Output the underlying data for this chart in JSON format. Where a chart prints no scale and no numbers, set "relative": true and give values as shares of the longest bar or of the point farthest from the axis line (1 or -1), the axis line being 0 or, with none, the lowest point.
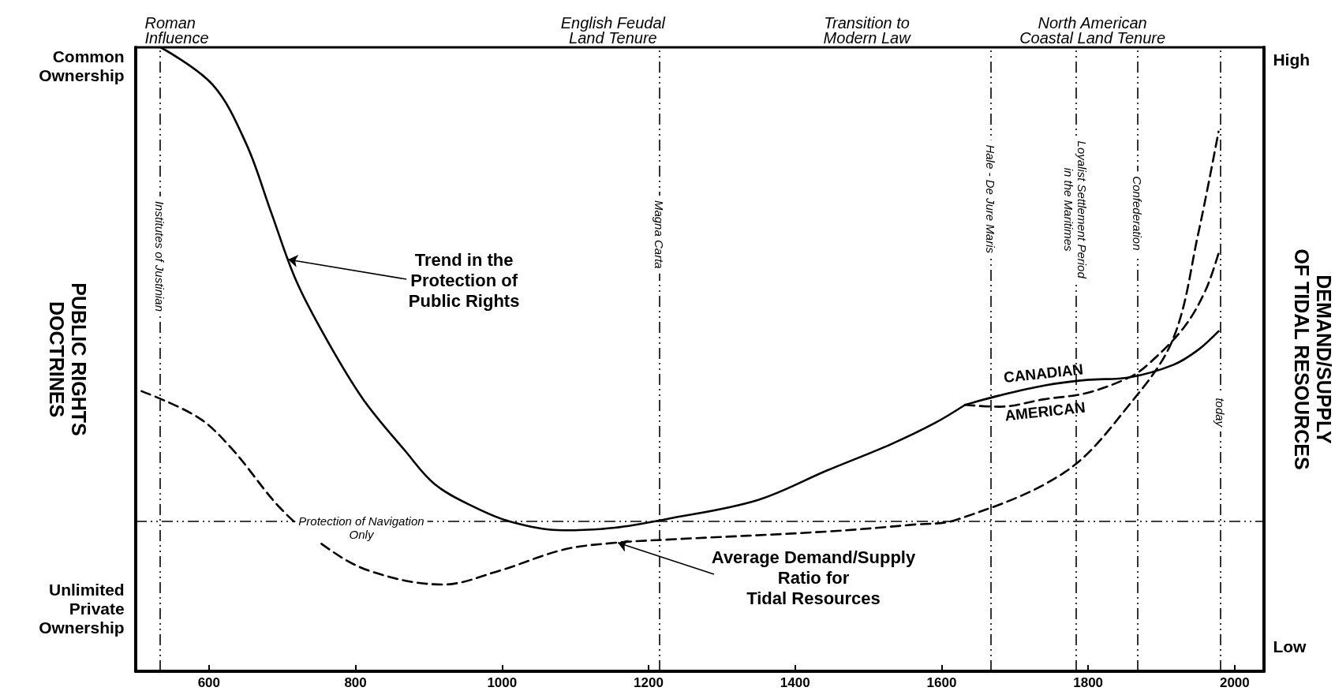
{
  "chart_data": {
    "type": "line",
    "relative": true,
    "ylabel": "PUBLIC RIGHTS\nDOCTRINES",
    "y2label": "DEMAND/SUPPLY\nOF TIDAL RESOURCES",
    "xlim": [
      500,
      2040
    ],
    "xticks": [
      600,
      800,
      1000,
      1200,
      1400,
      1600,
      1800,
      2000
    ],
    "marker": "none",
    "legend": false,
    "series": [
      {
        "x": [
          534,
          605,
          651,
          685,
          719,
          760,
          811,
          868,
          908,
          959,
          1011,
          1084,
          1154,
          1225,
          1348,
          1444,
          1531,
          1591,
          1632
        ],
        "values": [
          1.0,
          0.94,
          0.845,
          0.735,
          0.626,
          0.533,
          0.435,
          0.353,
          0.3,
          0.265,
          0.24,
          0.226,
          0.23,
          0.244,
          0.274,
          0.322,
          0.364,
          0.398,
          0.427
        ],
        "color": "#000000",
        "line_style": "solid"
      },
      {
        "name": "CANADIAN",
        "x": [
          1632,
          1679,
          1740,
          1798,
          1856,
          1916,
          1950,
          1978
        ],
        "values": [
          0.427,
          0.442,
          0.458,
          0.467,
          0.471,
          0.491,
          0.515,
          0.545
        ],
        "color": "#000000",
        "line_style": "solid"
      },
      {
        "name": "AMERICAN",
        "x": [
          1632,
          1679,
          1740,
          1798,
          1856,
          1881,
          1930,
          1960,
          1978
        ],
        "values": [
          0.427,
          0.424,
          0.436,
          0.446,
          0.471,
          0.491,
          0.55,
          0.61,
          0.67
        ],
        "color": "#000000",
        "line_style": "dashed"
      },
      {
        "x": [
          508,
          585,
          631,
          697,
          755,
          819,
          919,
          996,
          1084,
          1155,
          1225,
          1444,
          1561,
          1621,
          1768,
          1856,
          1916,
          1950,
          1978
        ],
        "values": [
          0.449,
          0.407,
          0.357,
          0.262,
          0.203,
          0.161,
          0.139,
          0.161,
          0.195,
          0.206,
          0.211,
          0.224,
          0.235,
          0.243,
          0.319,
          0.427,
          0.533,
          0.7,
          0.865
        ],
        "color": "#000000",
        "line_style": "dashed"
      }
    ],
    "ref_lines": [
      {
        "axis": "x",
        "value": 533,
        "label": "Institutes of Justinian"
      },
      {
        "axis": "x",
        "value": 1215,
        "label": "Magna Carta"
      },
      {
        "axis": "x",
        "value": 1667,
        "label": "Hale - De Jure Maris"
      },
      {
        "axis": "x",
        "value": 1783,
        "label": "Loyalist Settlement Period\nin the Maritimes"
      },
      {
        "axis": "x",
        "value": 1867,
        "label": "Confederation"
      },
      {
        "axis": "x",
        "value": 1980,
        "label": "today"
      },
      {
        "axis": "y",
        "value": 0.24,
        "label": "Protection of Navigation\nOnly"
      }
    ],
    "annotations": [
      "Roman\nInfluence",
      "English Feudal\nLand Tenure",
      "Transition to\nModern Law",
      "North American\nCoastal Land Tenure",
      "Common\nOwnership",
      "Unlimited\nPrivate\nOwnership",
      "High",
      "Low",
      {
        "text": "Trend in the\nProtection of\nPublic Rights",
        "x": 708,
        "y": 0.66
      },
      {
        "text": "Average Demand/Supply\nRatio for\nTidal Resources",
        "x": 1158,
        "y": 0.206
      }
    ]
  }
}
